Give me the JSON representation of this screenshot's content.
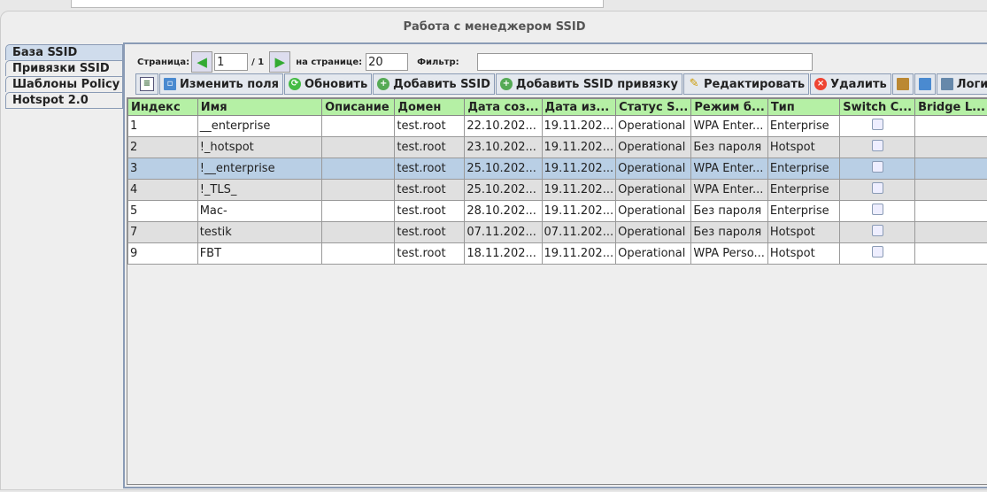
{
  "window": {
    "title": "Работа с менеджером SSID"
  },
  "tabs": [
    {
      "label": "База SSID",
      "active": true
    },
    {
      "label": "Привязки SSID"
    },
    {
      "label": "Шаблоны Policy"
    },
    {
      "label": "Hotspot 2.0"
    }
  ],
  "pager": {
    "page_label": "Страница:",
    "page": "1",
    "total": "/ 1",
    "per_page_label": "на странице:",
    "per_page": "20",
    "filter_label": "Фильтр:",
    "filter": ""
  },
  "toolbar": {
    "columns": "Изменить поля",
    "refresh": "Обновить",
    "add_ssid": "Добавить SSID",
    "add_binding": "Добавить SSID привязку",
    "edit": "Редактировать",
    "delete": "Удалить",
    "logs": "Логи"
  },
  "table": {
    "headers": [
      "Индекс",
      "Имя",
      "Описание",
      "Домен",
      "Дата соз...",
      "Дата из...",
      "Статус S...",
      "Режим б...",
      "Тип",
      "Switch C...",
      "Bridge L..."
    ],
    "rows": [
      [
        "1",
        "__enterprise",
        "",
        "test.root",
        "22.10.202...",
        "19.11.202...",
        "Operational",
        "WPA Enter...",
        "Enterprise"
      ],
      [
        "2",
        "!_hotspot",
        "",
        "test.root",
        "23.10.202...",
        "19.11.202...",
        "Operational",
        "Без пароля",
        "Hotspot"
      ],
      [
        "3",
        "!__enterprise",
        "",
        "test.root",
        "25.10.202...",
        "19.11.202...",
        "Operational",
        "WPA Enter...",
        "Enterprise"
      ],
      [
        "4",
        "!_TLS_",
        "",
        "test.root",
        "25.10.202...",
        "19.11.202...",
        "Operational",
        "WPA Enter...",
        "Enterprise"
      ],
      [
        "5",
        "Mac-",
        "",
        "test.root",
        "28.10.202...",
        "19.11.202...",
        "Operational",
        "Без пароля",
        "Enterprise"
      ],
      [
        "7",
        "testik",
        "",
        "test.root",
        "07.11.202...",
        "07.11.202...",
        "Operational",
        "Без пароля",
        "Hotspot"
      ],
      [
        "9",
        "FBT",
        "",
        "test.root",
        "18.11.202...",
        "19.11.202...",
        "Operational",
        "WPA Perso...",
        "Hotspot"
      ]
    ],
    "selected_row": 2
  }
}
